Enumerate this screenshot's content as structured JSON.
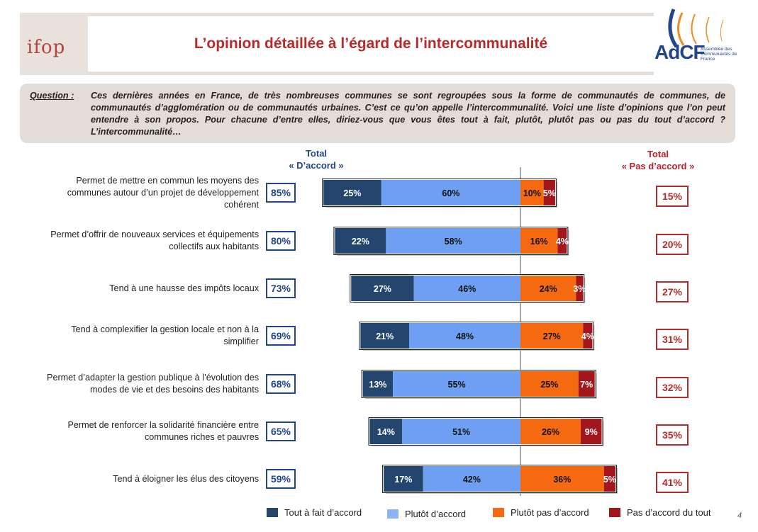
{
  "header": {
    "logo_left": "ifop",
    "title": "L’opinion détaillée à l’égard de l’intercommunalité",
    "logo_right": "AdCF",
    "logo_right_sub": "Assemblée des Communautés de France"
  },
  "question": {
    "label": "Question :",
    "text": "Ces dernières années en France, de très nombreuses communes se sont regroupées sous la forme de communautés de communes, de communautés d’agglomération ou de communautés urbaines. C’est ce qu’on appelle l’intercommunalité. Voici une liste d’opinions que l’on peut entendre à son propos. Pour chacune d’entre elles, diriez-vous que vous êtes tout à fait, plutôt, plutôt pas ou pas du tout d’accord ? L’intercommunalité…"
  },
  "totals": {
    "agree_line1": "Total",
    "agree_line2": "« D’accord »",
    "disagree_line1": "Total",
    "disagree_line2": "« Pas d’accord »"
  },
  "colors": {
    "tout_a_fait": "#23456e",
    "plutot": "#6f9ff2",
    "plutot_pas": "#f56a10",
    "pas_du_tout": "#a3161c"
  },
  "chart_data": {
    "type": "bar",
    "orientation": "horizontal-diverging",
    "categories": [
      "Permet de mettre en commun les moyens des communes autour d’un projet de développement cohérent",
      "Permet d’offrir de nouveaux services et équipements collectifs aux habitants",
      "Tend à une hausse des impôts locaux",
      "Tend à complexifier la gestion locale et non à la simplifier",
      "Permet d’adapter la gestion publique à l’évolution des modes de vie et des besoins des habitants",
      "Permet de renforcer la solidarité financière entre communes riches et pauvres",
      "Tend à éloigner les élus des citoyens"
    ],
    "series": [
      {
        "name": "Tout à fait d’accord",
        "values": [
          25,
          22,
          27,
          21,
          13,
          14,
          17
        ]
      },
      {
        "name": "Plutôt d’accord",
        "values": [
          60,
          58,
          46,
          48,
          55,
          51,
          42
        ]
      },
      {
        "name": "Plutôt pas d’accord",
        "values": [
          10,
          16,
          24,
          27,
          25,
          26,
          36
        ]
      },
      {
        "name": "Pas d’accord du tout",
        "values": [
          5,
          4,
          3,
          4,
          7,
          9,
          5
        ]
      }
    ],
    "total_agree": [
      "85%",
      "80%",
      "73%",
      "69%",
      "68%",
      "65%",
      "59%"
    ],
    "total_disagree": [
      "15%",
      "20%",
      "27%",
      "31%",
      "32%",
      "35%",
      "41%"
    ],
    "unit": "%",
    "legend_position": "bottom"
  },
  "row_labels": [
    [
      "Permet de mettre en commun les moyens des",
      "communes autour d’un projet de développement",
      "cohérent"
    ],
    [
      "Permet d’offrir de nouveaux services et équipements",
      "collectifs aux habitants"
    ],
    [
      "Tend à une hausse des impôts locaux"
    ],
    [
      "Tend à complexifier la gestion locale et non à la",
      "simplifier"
    ],
    [
      "Permet d’adapter la gestion publique à l’évolution des",
      "modes de vie et des besoins des habitants"
    ],
    [
      "Permet de renforcer la solidarité financière entre",
      "communes riches et pauvres"
    ],
    [
      "Tend à éloigner les élus des citoyens"
    ]
  ],
  "legend": {
    "tout_a_fait": "Tout à fait d’accord",
    "plutot": "Plutôt d’accord",
    "plutot_pas": "Plutôt pas d’accord",
    "pas_du_tout": "Pas d’accord du tout"
  },
  "page_number": "4"
}
